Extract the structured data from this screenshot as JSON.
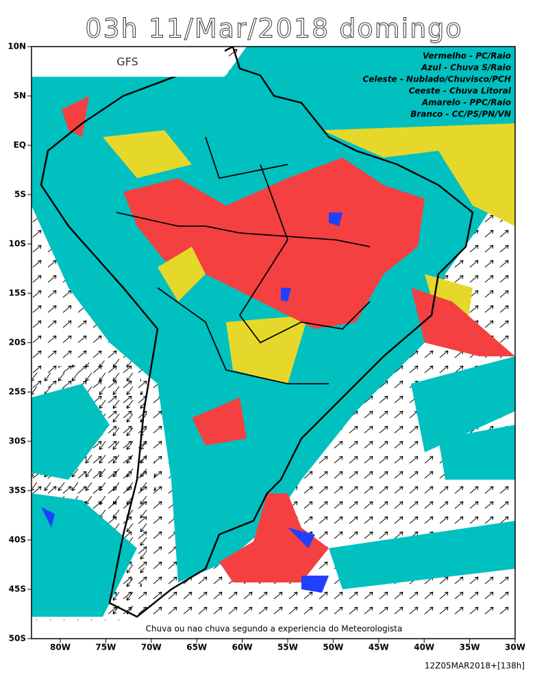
{
  "header": {
    "title": "03h 11/Mar/2018 domingo",
    "model": "GFS"
  },
  "legend": [
    "Vermelho - PC/Raio",
    "Azul - Chuva S/Raio",
    "Celeste - Nublado/Chuvisco/PCH",
    "Ceeste - Chuva Litoral",
    "Amarelo - PPC/Raio",
    "Branco - CC/PS/PN/VN"
  ],
  "lat_labels": [
    "10N",
    "5N",
    "EQ",
    "5S",
    "10S",
    "15S",
    "20S",
    "25S",
    "30S",
    "35S",
    "40S",
    "45S",
    "50S"
  ],
  "lon_labels": [
    "80W",
    "75W",
    "70W",
    "65W",
    "60W",
    "55W",
    "50W",
    "45W",
    "40W",
    "35W",
    "30W"
  ],
  "caption": "Chuva ou nao chuva segundo a experiencia do Meteorologista",
  "footer": "12Z05MAR2018+[138h]"
}
